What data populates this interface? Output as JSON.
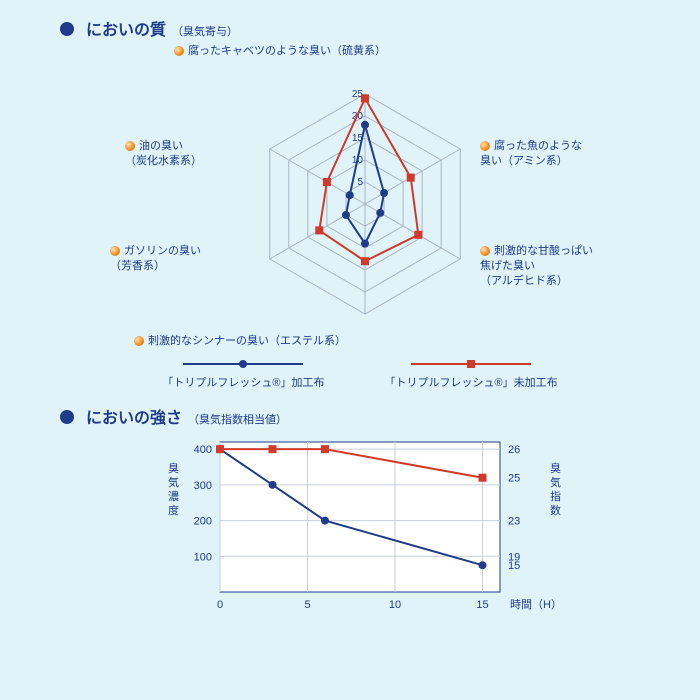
{
  "section1": {
    "title": "においの質",
    "subtitle": "（臭気寄与）"
  },
  "radar": {
    "max": 25,
    "rings": 5,
    "ring_labels": [
      "5",
      "10",
      "15",
      "20",
      "25"
    ],
    "axes": [
      {
        "line1": "腐ったキャベツのような臭い（硫黄系）",
        "line2": ""
      },
      {
        "line1": "腐った魚のような",
        "line2": "臭い（アミン系）"
      },
      {
        "line1": "刺激的な甘酸っぱい",
        "line2": "焦げた臭い",
        "line3": "（アルデヒド系）"
      },
      {
        "line1": "刺激的なシンナーの臭い（エステル系）",
        "line2": ""
      },
      {
        "line1": "ガソリンの臭い",
        "line2": "（芳香系）"
      },
      {
        "line1": "油の臭い",
        "line2": "（炭化水素系）"
      }
    ],
    "series": [
      {
        "name": "treated",
        "color": "#1f3b8a",
        "marker": "circle",
        "values": [
          18,
          5,
          4,
          9,
          5,
          4
        ]
      },
      {
        "name": "untreated",
        "color": "#d03a2b",
        "marker": "square",
        "values": [
          24,
          12,
          14,
          13,
          12,
          10
        ]
      }
    ],
    "grid_color": "#aab4c4"
  },
  "legend": {
    "treated": "「トリプルフレッシュ®」加工布",
    "untreated": "「トリプルフレッシュ®」未加工布"
  },
  "section2": {
    "title": "においの強さ",
    "subtitle": "（臭気指数相当値）"
  },
  "linechart": {
    "xlabel": "時間（H）",
    "ylabel_left": "臭気濃度",
    "ylabel_right": "臭気指数",
    "x_ticks": [
      0,
      5,
      10,
      15
    ],
    "y_ticks_left": [
      100,
      200,
      300,
      400
    ],
    "y_right_labels": [
      {
        "y": 400,
        "text": "26"
      },
      {
        "y": 320,
        "text": "25"
      },
      {
        "y": 200,
        "text": "23"
      },
      {
        "y": 100,
        "text": "19"
      },
      {
        "y": 75,
        "text": "15"
      }
    ],
    "xlim": [
      0,
      16
    ],
    "ylim": [
      0,
      420
    ],
    "grid_color": "#c7cfda",
    "background": "#ffffff",
    "series": [
      {
        "name": "treated",
        "color": "#1f3b8a",
        "marker": "circle",
        "points": [
          {
            "x": 0,
            "y": 400
          },
          {
            "x": 3,
            "y": 300
          },
          {
            "x": 6,
            "y": 200
          },
          {
            "x": 15,
            "y": 75
          }
        ]
      },
      {
        "name": "untreated",
        "color": "#d03a2b",
        "marker": "square",
        "points": [
          {
            "x": 0,
            "y": 400
          },
          {
            "x": 3,
            "y": 400
          },
          {
            "x": 6,
            "y": 400
          },
          {
            "x": 15,
            "y": 320
          }
        ]
      }
    ]
  }
}
